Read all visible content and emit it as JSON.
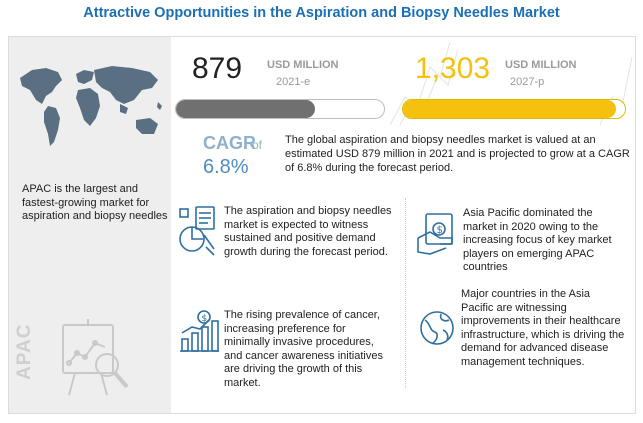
{
  "title": "Attractive Opportunities in the Aspiration and Biopsy Needles Market",
  "left": {
    "apac_text": "APAC is the largest and fastest-growing market for aspiration and biopsy needles",
    "apac_vertical": "APAC"
  },
  "market": {
    "value_2021": "879",
    "unit_2021": "USD MILLION",
    "year_2021": "2021-e",
    "value_2027": "1,303",
    "unit_2027": "USD MILLION",
    "year_2027": "2027-p",
    "fill_2021_fraction": 0.67,
    "fill_2027_fraction": 0.96
  },
  "cagr": {
    "label": "CAGR",
    "of": "of",
    "value": "6.8%"
  },
  "summary": "The global aspiration and biopsy needles market is valued at an estimated USD 879 million in 2021 and is projected to grow at a CAGR of 6.8% during the forecast period.",
  "points": [
    "The aspiration and biopsy needles market is expected to witness sustained and positive demand growth during the forecast period.",
    "Asia Pacific dominated the market in 2020 owing to the increasing focus of key market players on emerging APAC countries",
    "The rising prevalence of cancer, increasing preference for minimally invasive procedures, and cancer awareness initiatives are driving the growth of this market.",
    "Major countries in the Asia Pacific are witnessing improvements in their healthcare infrastructure, which is driving the demand for advanced disease management techniques."
  ],
  "colors": {
    "title": "#1b6fb5",
    "accent_yellow": "#f4c10f",
    "bar_grey": "#707070",
    "icon_blue": "#2f6f9f"
  }
}
